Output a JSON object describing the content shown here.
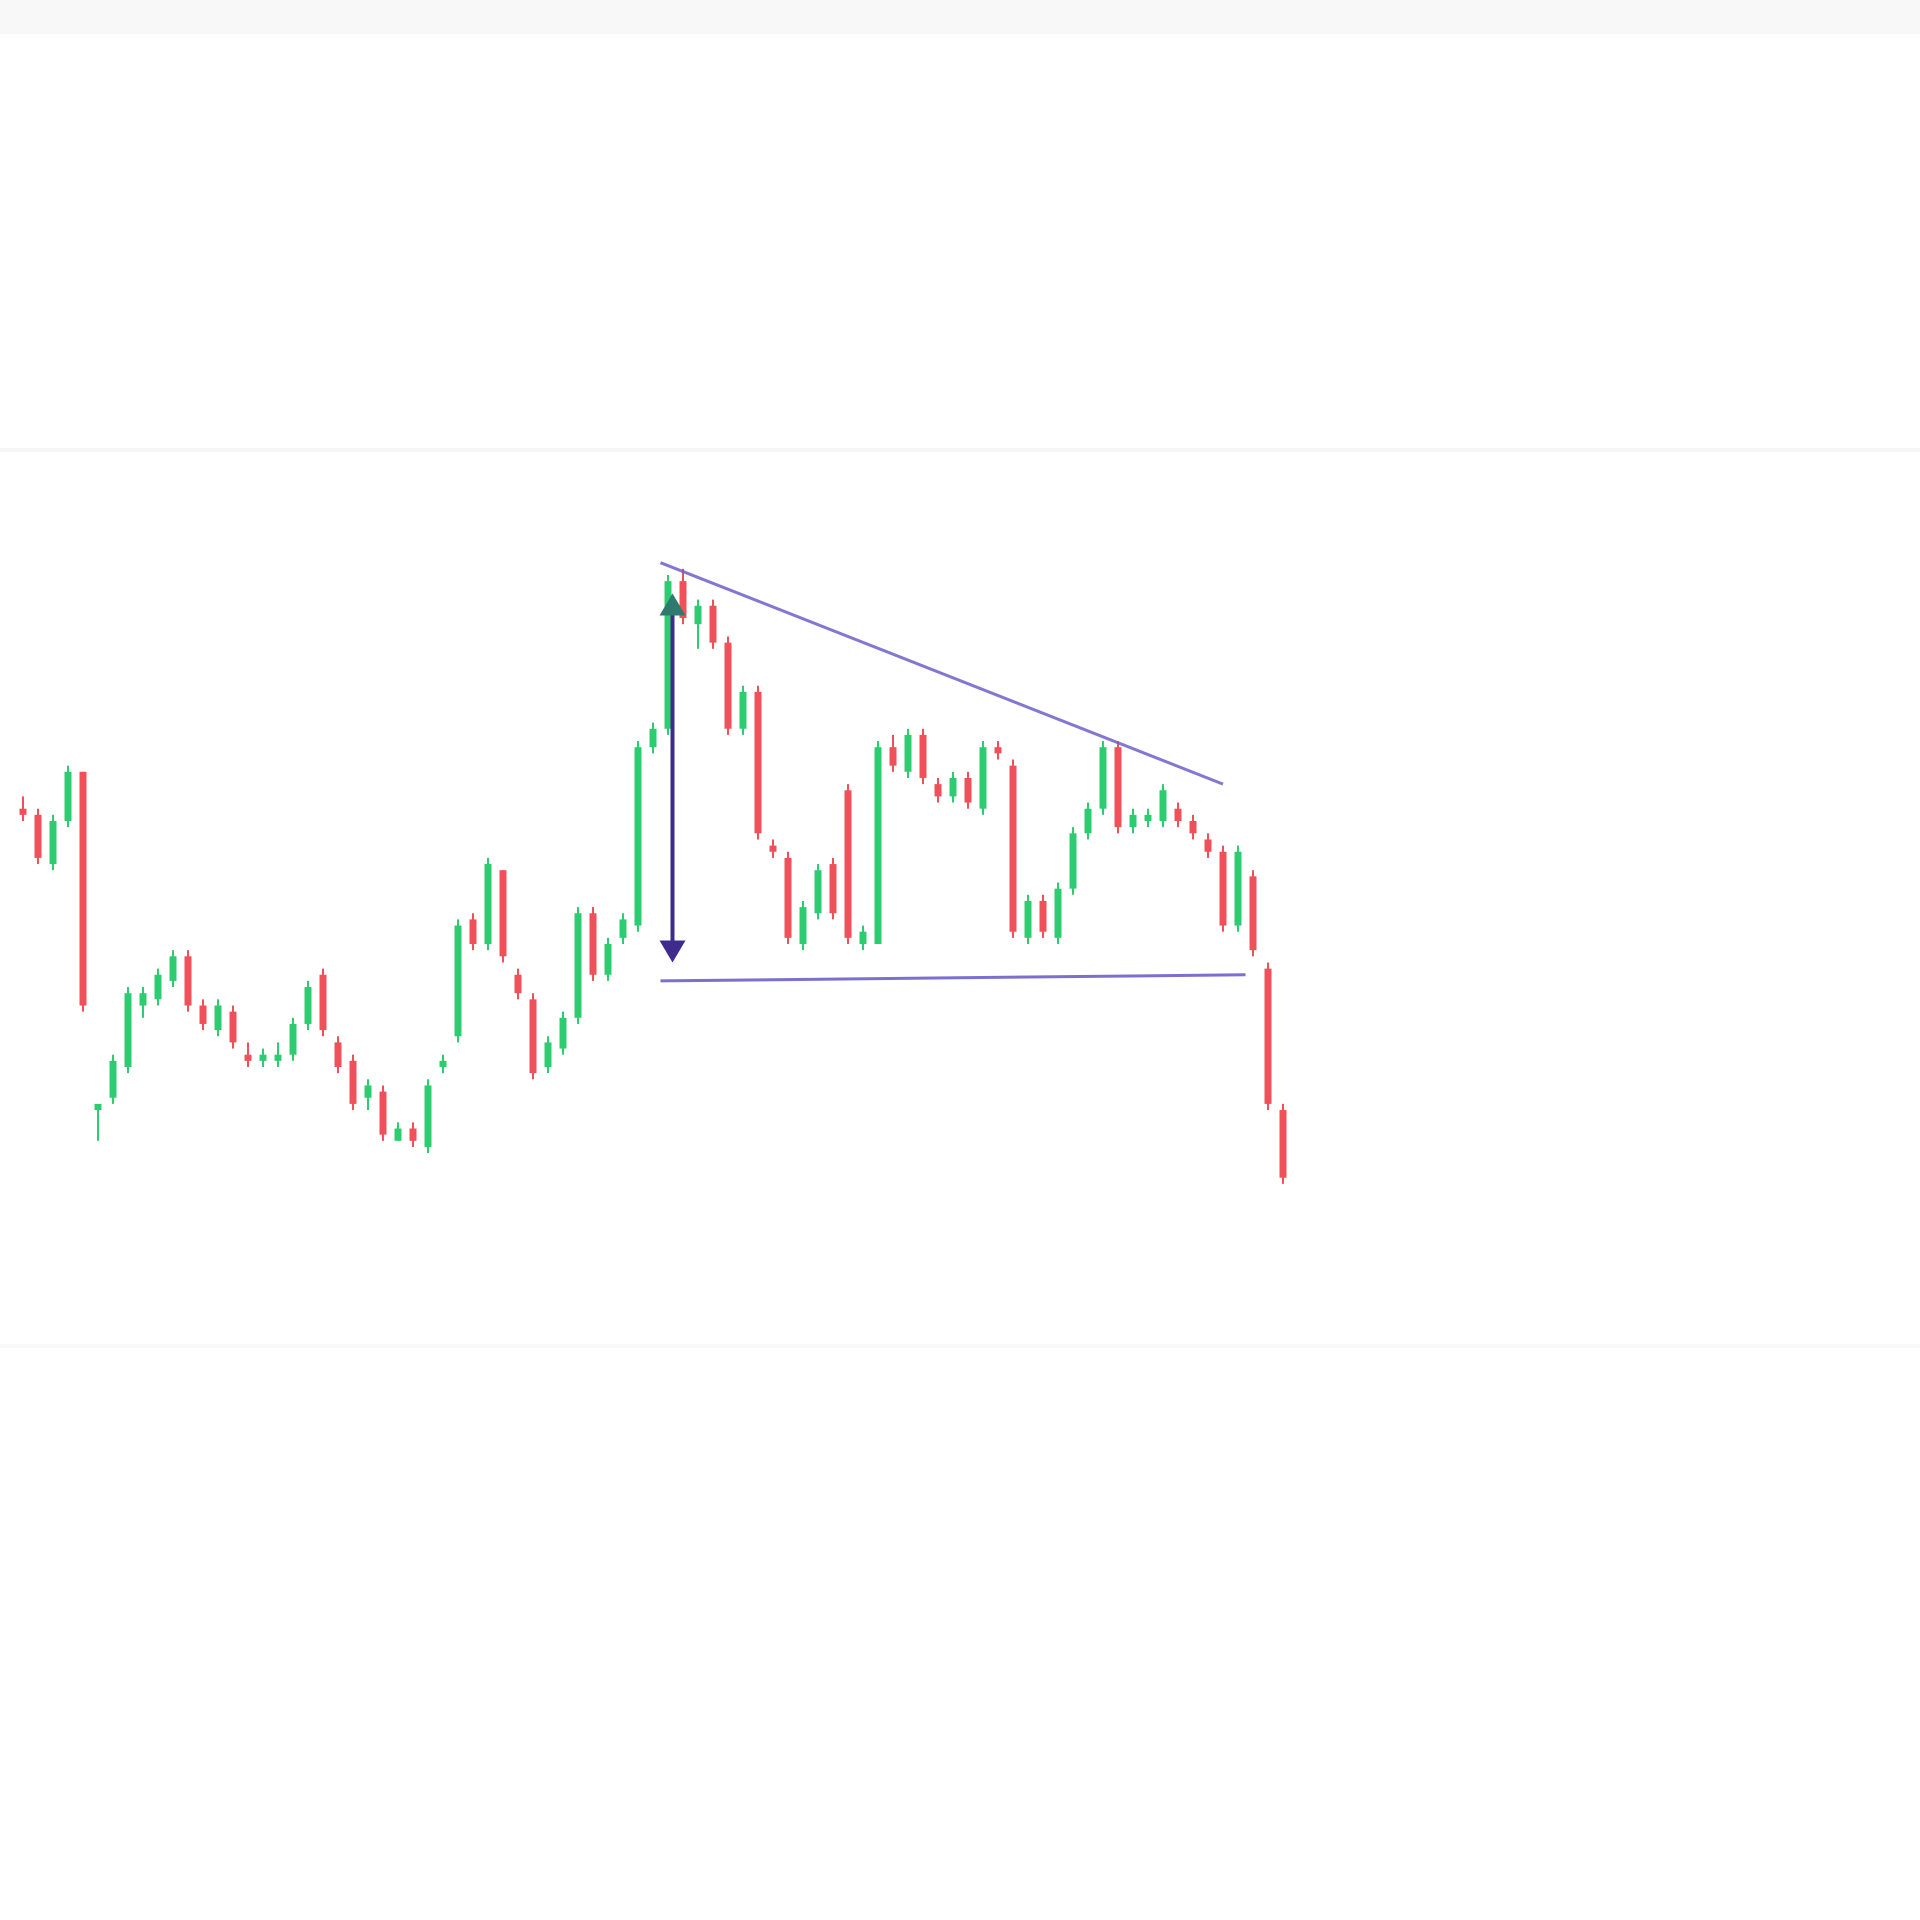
{
  "chart_data": {
    "type": "candlestick",
    "title": "",
    "xlabel": "",
    "ylabel": "",
    "grid": false,
    "legend": "none",
    "pattern": "descending-triangle",
    "ylim": [
      0,
      100
    ],
    "colors": {
      "up": "#2ecc71",
      "down": "#f0505a",
      "pattern_line": "#6f5fc9",
      "arrow": "#3d2c8d",
      "arrow_head_up": "#2d7a6e",
      "background": "#ffffff"
    },
    "candles": [
      {
        "x": 1,
        "open": 62,
        "high": 64,
        "low": 60,
        "close": 61,
        "dir": "down"
      },
      {
        "x": 2,
        "open": 61,
        "high": 62,
        "low": 53,
        "close": 54,
        "dir": "down"
      },
      {
        "x": 3,
        "open": 53,
        "high": 61,
        "low": 52,
        "close": 60,
        "dir": "up"
      },
      {
        "x": 4,
        "open": 60,
        "high": 69,
        "low": 59,
        "close": 68,
        "dir": "up"
      },
      {
        "x": 5,
        "open": 68,
        "high": 68,
        "low": 29,
        "close": 30,
        "dir": "down"
      },
      {
        "x": 6,
        "open": 13,
        "high": 14,
        "low": 8,
        "close": 14,
        "dir": "up"
      },
      {
        "x": 7,
        "open": 15,
        "high": 22,
        "low": 14,
        "close": 21,
        "dir": "up"
      },
      {
        "x": 8,
        "open": 20,
        "high": 33,
        "low": 19,
        "close": 32,
        "dir": "up"
      },
      {
        "x": 9,
        "open": 30,
        "high": 33,
        "low": 28,
        "close": 32,
        "dir": "up"
      },
      {
        "x": 10,
        "open": 31,
        "high": 36,
        "low": 30,
        "close": 35,
        "dir": "up"
      },
      {
        "x": 11,
        "open": 34,
        "high": 39,
        "low": 33,
        "close": 38,
        "dir": "up"
      },
      {
        "x": 12,
        "open": 38,
        "high": 39,
        "low": 29,
        "close": 30,
        "dir": "down"
      },
      {
        "x": 13,
        "open": 30,
        "high": 31,
        "low": 26,
        "close": 27,
        "dir": "down"
      },
      {
        "x": 14,
        "open": 26,
        "high": 31,
        "low": 25,
        "close": 30,
        "dir": "up"
      },
      {
        "x": 15,
        "open": 29,
        "high": 30,
        "low": 23,
        "close": 24,
        "dir": "down"
      },
      {
        "x": 16,
        "open": 22,
        "high": 24,
        "low": 20,
        "close": 21,
        "dir": "down"
      },
      {
        "x": 17,
        "open": 21,
        "high": 23,
        "low": 20,
        "close": 22,
        "dir": "up"
      },
      {
        "x": 18,
        "open": 21,
        "high": 24,
        "low": 20,
        "close": 22,
        "dir": "up"
      },
      {
        "x": 19,
        "open": 22,
        "high": 28,
        "low": 21,
        "close": 27,
        "dir": "up"
      },
      {
        "x": 20,
        "open": 27,
        "high": 34,
        "low": 26,
        "close": 33,
        "dir": "up"
      },
      {
        "x": 21,
        "open": 35,
        "high": 36,
        "low": 25,
        "close": 26,
        "dir": "down"
      },
      {
        "x": 22,
        "open": 24,
        "high": 25,
        "low": 19,
        "close": 20,
        "dir": "down"
      },
      {
        "x": 23,
        "open": 21,
        "high": 22,
        "low": 13,
        "close": 14,
        "dir": "down"
      },
      {
        "x": 24,
        "open": 15,
        "high": 18,
        "low": 13,
        "close": 17,
        "dir": "up"
      },
      {
        "x": 25,
        "open": 16,
        "high": 17,
        "low": 8,
        "close": 9,
        "dir": "down"
      },
      {
        "x": 26,
        "open": 8,
        "high": 11,
        "low": 8,
        "close": 10,
        "dir": "up"
      },
      {
        "x": 27,
        "open": 10,
        "high": 11,
        "low": 7,
        "close": 8,
        "dir": "down"
      },
      {
        "x": 28,
        "open": 7,
        "high": 18,
        "low": 6,
        "close": 17,
        "dir": "up"
      },
      {
        "x": 29,
        "open": 20,
        "high": 22,
        "low": 19,
        "close": 21,
        "dir": "up"
      },
      {
        "x": 30,
        "open": 25,
        "high": 44,
        "low": 24,
        "close": 43,
        "dir": "up"
      },
      {
        "x": 31,
        "open": 44,
        "high": 45,
        "low": 39,
        "close": 40,
        "dir": "down"
      },
      {
        "x": 32,
        "open": 40,
        "high": 54,
        "low": 39,
        "close": 53,
        "dir": "up"
      },
      {
        "x": 33,
        "open": 52,
        "high": 52,
        "low": 37,
        "close": 38,
        "dir": "down"
      },
      {
        "x": 34,
        "open": 35,
        "high": 36,
        "low": 31,
        "close": 32,
        "dir": "down"
      },
      {
        "x": 35,
        "open": 31,
        "high": 32,
        "low": 18,
        "close": 19,
        "dir": "down"
      },
      {
        "x": 36,
        "open": 20,
        "high": 25,
        "low": 19,
        "close": 24,
        "dir": "up"
      },
      {
        "x": 37,
        "open": 23,
        "high": 29,
        "low": 22,
        "close": 28,
        "dir": "up"
      },
      {
        "x": 38,
        "open": 28,
        "high": 46,
        "low": 27,
        "close": 45,
        "dir": "up"
      },
      {
        "x": 39,
        "open": 45,
        "high": 46,
        "low": 34,
        "close": 35,
        "dir": "down"
      },
      {
        "x": 40,
        "open": 35,
        "high": 41,
        "low": 34,
        "close": 40,
        "dir": "up"
      },
      {
        "x": 41,
        "open": 41,
        "high": 45,
        "low": 40,
        "close": 44,
        "dir": "up"
      },
      {
        "x": 42,
        "open": 43,
        "high": 73,
        "low": 42,
        "close": 72,
        "dir": "up"
      },
      {
        "x": 43,
        "open": 72,
        "high": 76,
        "low": 71,
        "close": 75,
        "dir": "up"
      },
      {
        "x": 44,
        "open": 75,
        "high": 100,
        "low": 74,
        "close": 99,
        "dir": "up"
      },
      {
        "x": 45,
        "open": 99,
        "high": 101,
        "low": 92,
        "close": 93,
        "dir": "down"
      },
      {
        "x": 46,
        "open": 92,
        "high": 96,
        "low": 88,
        "close": 95,
        "dir": "up"
      },
      {
        "x": 47,
        "open": 95,
        "high": 96,
        "low": 88,
        "close": 89,
        "dir": "down"
      },
      {
        "x": 48,
        "open": 89,
        "high": 90,
        "low": 74,
        "close": 75,
        "dir": "down"
      },
      {
        "x": 49,
        "open": 75,
        "high": 82,
        "low": 74,
        "close": 81,
        "dir": "up"
      },
      {
        "x": 50,
        "open": 81,
        "high": 82,
        "low": 57,
        "close": 58,
        "dir": "down"
      },
      {
        "x": 51,
        "open": 56,
        "high": 57,
        "low": 54,
        "close": 55,
        "dir": "down"
      },
      {
        "x": 52,
        "open": 54,
        "high": 55,
        "low": 40,
        "close": 41,
        "dir": "down"
      },
      {
        "x": 53,
        "open": 40,
        "high": 47,
        "low": 39,
        "close": 46,
        "dir": "up"
      },
      {
        "x": 54,
        "open": 45,
        "high": 53,
        "low": 44,
        "close": 52,
        "dir": "up"
      },
      {
        "x": 55,
        "open": 53,
        "high": 54,
        "low": 44,
        "close": 45,
        "dir": "down"
      },
      {
        "x": 56,
        "open": 65,
        "high": 66,
        "low": 40,
        "close": 41,
        "dir": "down"
      },
      {
        "x": 57,
        "open": 40,
        "high": 43,
        "low": 39,
        "close": 42,
        "dir": "up"
      },
      {
        "x": 58,
        "open": 40,
        "high": 73,
        "low": 40,
        "close": 72,
        "dir": "up"
      },
      {
        "x": 59,
        "open": 72,
        "high": 74,
        "low": 68,
        "close": 69,
        "dir": "down"
      },
      {
        "x": 60,
        "open": 68,
        "high": 75,
        "low": 67,
        "close": 74,
        "dir": "up"
      },
      {
        "x": 61,
        "open": 74,
        "high": 75,
        "low": 66,
        "close": 67,
        "dir": "down"
      },
      {
        "x": 62,
        "open": 66,
        "high": 67,
        "low": 63,
        "close": 64,
        "dir": "down"
      },
      {
        "x": 63,
        "open": 64,
        "high": 68,
        "low": 63,
        "close": 67,
        "dir": "up"
      },
      {
        "x": 64,
        "open": 67,
        "high": 68,
        "low": 62,
        "close": 63,
        "dir": "down"
      },
      {
        "x": 65,
        "open": 62,
        "high": 73,
        "low": 61,
        "close": 72,
        "dir": "up"
      },
      {
        "x": 66,
        "open": 72,
        "high": 73,
        "low": 70,
        "close": 71,
        "dir": "down"
      },
      {
        "x": 67,
        "open": 69,
        "high": 70,
        "low": 41,
        "close": 42,
        "dir": "down"
      },
      {
        "x": 68,
        "open": 41,
        "high": 48,
        "low": 40,
        "close": 47,
        "dir": "up"
      },
      {
        "x": 69,
        "open": 47,
        "high": 48,
        "low": 41,
        "close": 42,
        "dir": "down"
      },
      {
        "x": 70,
        "open": 41,
        "high": 50,
        "low": 40,
        "close": 49,
        "dir": "up"
      },
      {
        "x": 71,
        "open": 49,
        "high": 59,
        "low": 48,
        "close": 58,
        "dir": "up"
      },
      {
        "x": 72,
        "open": 58,
        "high": 63,
        "low": 57,
        "close": 62,
        "dir": "up"
      },
      {
        "x": 73,
        "open": 62,
        "high": 73,
        "low": 61,
        "close": 72,
        "dir": "up"
      },
      {
        "x": 74,
        "open": 72,
        "high": 73,
        "low": 58,
        "close": 59,
        "dir": "down"
      },
      {
        "x": 75,
        "open": 59,
        "high": 62,
        "low": 58,
        "close": 61,
        "dir": "up"
      },
      {
        "x": 76,
        "open": 60,
        "high": 62,
        "low": 59,
        "close": 61,
        "dir": "up"
      },
      {
        "x": 77,
        "open": 60,
        "high": 66,
        "low": 59,
        "close": 65,
        "dir": "up"
      },
      {
        "x": 78,
        "open": 62,
        "high": 63,
        "low": 59,
        "close": 60,
        "dir": "down"
      },
      {
        "x": 79,
        "open": 60,
        "high": 61,
        "low": 57,
        "close": 58,
        "dir": "down"
      },
      {
        "x": 80,
        "open": 57,
        "high": 58,
        "low": 54,
        "close": 55,
        "dir": "down"
      },
      {
        "x": 81,
        "open": 55,
        "high": 56,
        "low": 42,
        "close": 43,
        "dir": "down"
      },
      {
        "x": 82,
        "open": 43,
        "high": 56,
        "low": 42,
        "close": 55,
        "dir": "up"
      },
      {
        "x": 83,
        "open": 51,
        "high": 52,
        "low": 38,
        "close": 39,
        "dir": "down"
      },
      {
        "x": 84,
        "open": 36,
        "high": 37,
        "low": 13,
        "close": 14,
        "dir": "down"
      },
      {
        "x": 85,
        "open": 13,
        "high": 14,
        "low": 1,
        "close": 2,
        "dir": "down"
      }
    ],
    "annotations": {
      "resistance_line": {
        "x1": 43.5,
        "y1": 102,
        "x2": 81,
        "y2": 66
      },
      "support_line": {
        "x1": 43.5,
        "y1": 34,
        "x2": 82.5,
        "y2": 35
      },
      "height_arrow": {
        "x": 44.3,
        "y_top": 97,
        "y_bottom": 37
      }
    }
  }
}
